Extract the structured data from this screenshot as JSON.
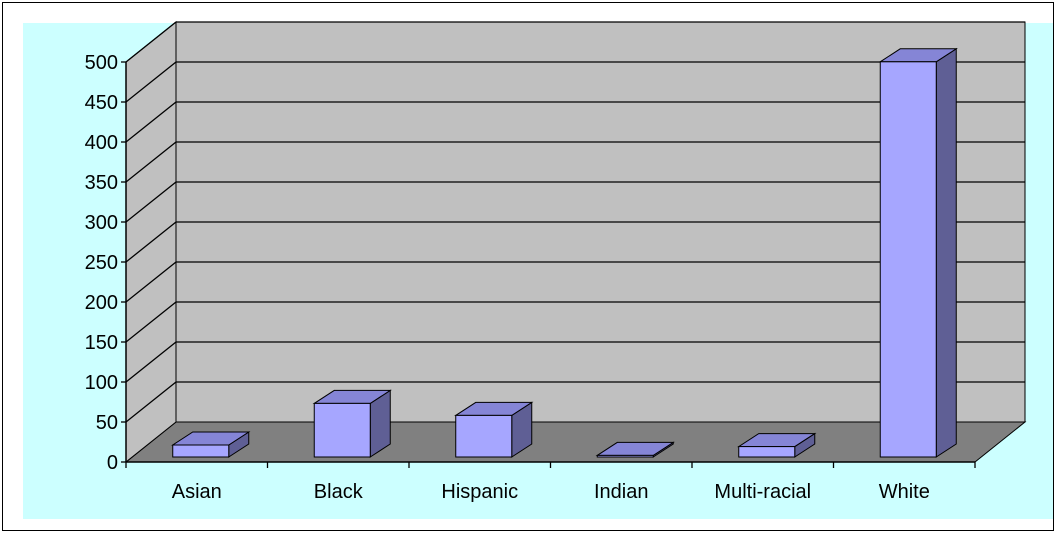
{
  "chart_data": {
    "type": "bar",
    "style": "3d-column",
    "categories": [
      "Asian",
      "Black",
      "Hispanic",
      "Indian",
      "Multi-racial",
      "White"
    ],
    "values": [
      15,
      67,
      52,
      2,
      13,
      494
    ],
    "title": "",
    "xlabel": "",
    "ylabel": "",
    "ylim": [
      0,
      500
    ],
    "yticks": [
      "0",
      "50",
      "100",
      "150",
      "200",
      "250",
      "300",
      "350",
      "400",
      "450",
      "500"
    ],
    "grid": true,
    "legend": "none",
    "colors": {
      "chart_area": "#ccffff",
      "back_wall": "#c0c0c0",
      "side_wall": "#c0c0c0",
      "floor": "#808080",
      "bar_front": "#a6a6ff",
      "bar_side": "#5f5f95",
      "bar_top": "#8585d6",
      "gridline": "#000000"
    }
  }
}
